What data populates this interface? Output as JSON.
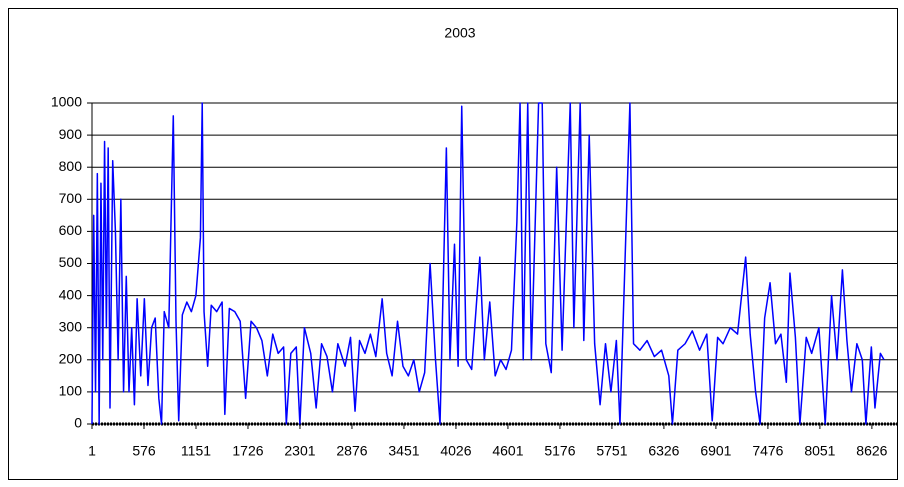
{
  "chart_data": {
    "type": "line",
    "title": "2003",
    "x": [
      1,
      20,
      40,
      60,
      80,
      100,
      120,
      140,
      160,
      180,
      200,
      230,
      260,
      290,
      320,
      350,
      380,
      410,
      440,
      470,
      500,
      540,
      580,
      620,
      660,
      700,
      740,
      770,
      800,
      850,
      900,
      930,
      960,
      1000,
      1050,
      1100,
      1150,
      1200,
      1220,
      1240,
      1280,
      1320,
      1380,
      1440,
      1470,
      1520,
      1580,
      1640,
      1700,
      1760,
      1820,
      1880,
      1940,
      2000,
      2060,
      2120,
      2150,
      2200,
      2260,
      2300,
      2350,
      2420,
      2480,
      2540,
      2600,
      2660,
      2720,
      2800,
      2860,
      2910,
      2960,
      3020,
      3080,
      3140,
      3210,
      3260,
      3320,
      3380,
      3440,
      3500,
      3560,
      3620,
      3680,
      3740,
      3800,
      3850,
      3920,
      3960,
      4010,
      4050,
      4090,
      4140,
      4200,
      4290,
      4340,
      4400,
      4460,
      4520,
      4580,
      4640,
      4700,
      4735,
      4770,
      4820,
      4860,
      4940,
      4980,
      5020,
      5080,
      5140,
      5200,
      5290,
      5330,
      5400,
      5440,
      5500,
      5560,
      5620,
      5680,
      5740,
      5800,
      5840,
      5950,
      5990,
      6060,
      6140,
      6220,
      6300,
      6380,
      6420,
      6480,
      6560,
      6640,
      6720,
      6800,
      6860,
      6920,
      6980,
      7060,
      7140,
      7230,
      7280,
      7340,
      7390,
      7440,
      7500,
      7560,
      7620,
      7680,
      7720,
      7780,
      7830,
      7900,
      7960,
      8040,
      8110,
      8180,
      8240,
      8300,
      8350,
      8400,
      8460,
      8520,
      8560,
      8620,
      8660,
      8720,
      8760
    ],
    "series": [
      {
        "name": "2003",
        "color": "#0000ff",
        "values": [
          0,
          650,
          100,
          780,
          0,
          750,
          200,
          880,
          300,
          860,
          50,
          820,
          600,
          200,
          700,
          100,
          460,
          100,
          300,
          60,
          390,
          150,
          390,
          120,
          300,
          330,
          80,
          0,
          350,
          300,
          960,
          320,
          10,
          340,
          380,
          350,
          400,
          580,
          1000,
          350,
          180,
          370,
          350,
          380,
          30,
          360,
          350,
          320,
          80,
          320,
          300,
          260,
          150,
          280,
          220,
          240,
          0,
          220,
          240,
          0,
          300,
          220,
          50,
          250,
          210,
          100,
          250,
          180,
          270,
          40,
          260,
          220,
          280,
          210,
          390,
          220,
          150,
          320,
          180,
          150,
          200,
          100,
          160,
          500,
          200,
          0,
          860,
          200,
          560,
          180,
          990,
          200,
          170,
          520,
          200,
          380,
          150,
          200,
          170,
          230,
          630,
          1000,
          200,
          1000,
          200,
          1000,
          1000,
          250,
          160,
          800,
          230,
          1000,
          300,
          1000,
          260,
          900,
          250,
          60,
          250,
          100,
          260,
          0,
          1000,
          250,
          230,
          260,
          210,
          230,
          150,
          0,
          230,
          250,
          290,
          230,
          280,
          10,
          270,
          250,
          300,
          280,
          520,
          280,
          100,
          0,
          330,
          440,
          250,
          280,
          130,
          470,
          270,
          0,
          270,
          220,
          300,
          0,
          400,
          200,
          480,
          260,
          100,
          250,
          200,
          0,
          240,
          50,
          220,
          200
        ]
      }
    ],
    "xlim": [
      1,
      8760
    ],
    "xticks": [
      1,
      576,
      1151,
      1726,
      2301,
      2876,
      3451,
      4026,
      4601,
      5176,
      5751,
      6326,
      6901,
      7476,
      8051,
      8626
    ],
    "ylim": [
      0,
      1000
    ],
    "yticks": [
      0,
      100,
      200,
      300,
      400,
      500,
      600,
      700,
      800,
      900,
      1000
    ],
    "grid": true
  }
}
